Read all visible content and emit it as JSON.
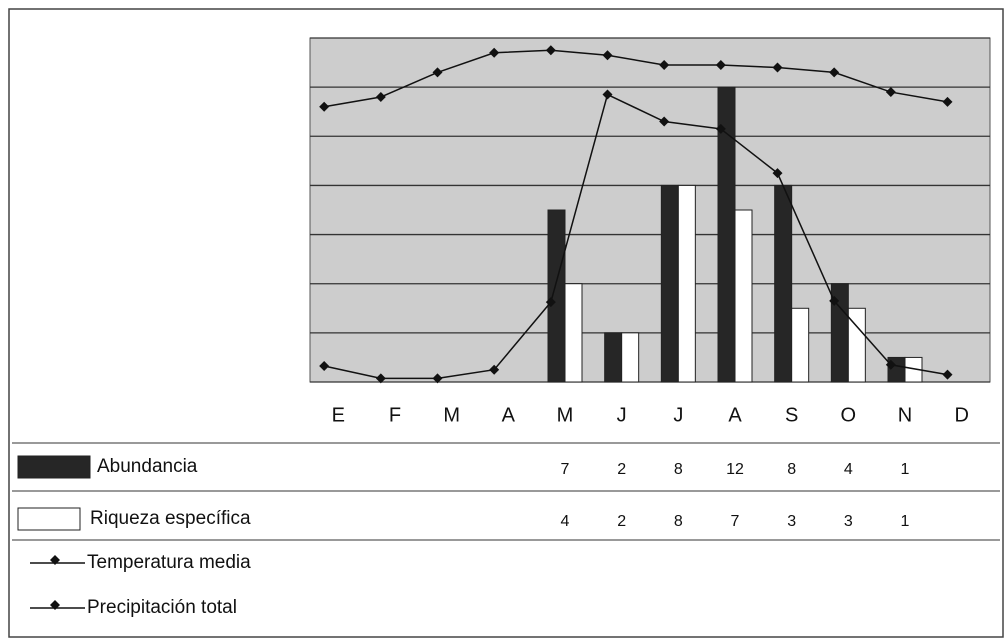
{
  "chart_data": {
    "type": "bar",
    "categories": [
      "E",
      "F",
      "M",
      "A",
      "M",
      "J",
      "J",
      "A",
      "S",
      "O",
      "N",
      "D"
    ],
    "ylim": [
      0,
      14
    ],
    "yticks": [
      0,
      2,
      4,
      6,
      8,
      10,
      12,
      14
    ],
    "grid": true,
    "series": [
      {
        "name": "Abundancia",
        "color": "#262626",
        "values": [
          null,
          null,
          null,
          null,
          7,
          2,
          8,
          12,
          8,
          4,
          1,
          null
        ]
      },
      {
        "name": "Riqueza específica",
        "color": "#ffffff",
        "values": [
          null,
          null,
          null,
          null,
          4,
          2,
          8,
          7,
          3,
          3,
          1,
          null
        ]
      },
      {
        "name": "Temperatura media",
        "type": "line",
        "color": "#111111",
        "values": [
          11.2,
          11.6,
          12.6,
          13.4,
          13.5,
          13.3,
          12.9,
          12.9,
          12.8,
          12.6,
          11.8,
          11.4
        ]
      },
      {
        "name": "Precipitación total",
        "type": "line",
        "color": "#111111",
        "values": [
          0.65,
          0.15,
          0.15,
          0.5,
          3.25,
          11.7,
          10.6,
          10.3,
          8.5,
          3.3,
          0.7,
          0.3
        ]
      }
    ]
  }
}
